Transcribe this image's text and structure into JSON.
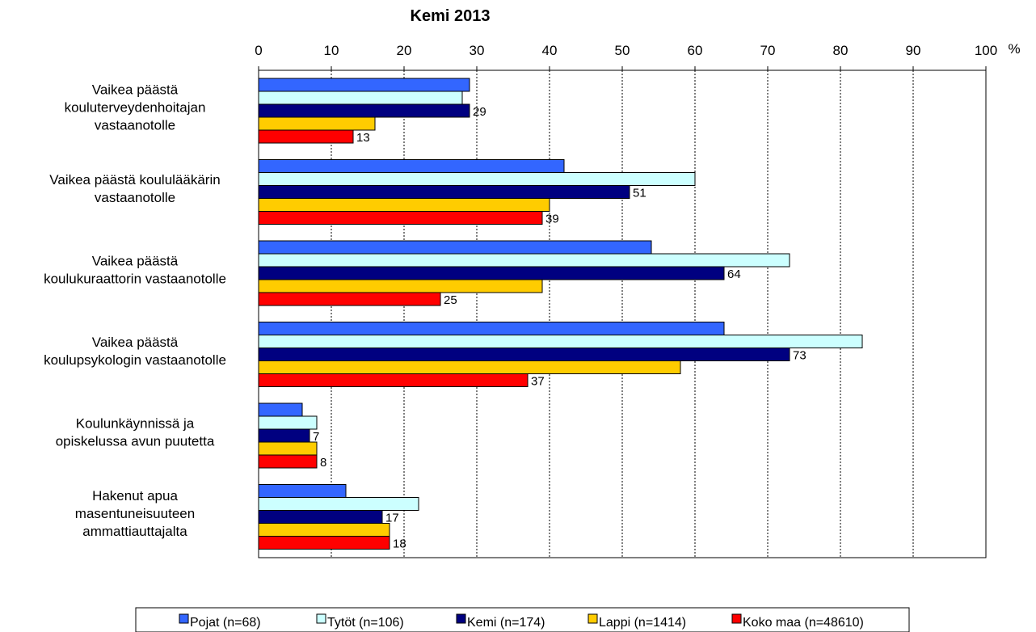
{
  "chart_data": {
    "type": "bar",
    "orientation": "horizontal",
    "title": "Kemi 2013",
    "unit": "%",
    "xlim": [
      0,
      100
    ],
    "ticks": [
      0,
      10,
      20,
      30,
      40,
      50,
      60,
      70,
      80,
      90,
      100
    ],
    "grid": true,
    "legend_position": "bottom",
    "categories": [
      [
        "Vaikea päästä",
        "kouluterveydenhoitajan",
        "vastaanotolle"
      ],
      [
        "Vaikea päästä koululääkärin",
        "vastaanotolle"
      ],
      [
        "Vaikea päästä",
        "koulukuraattorin vastaanotolle"
      ],
      [
        "Vaikea päästä",
        "koulupsykologin vastaanotolle"
      ],
      [
        "Koulunkäynnissä ja",
        "opiskelussa avun puutetta"
      ],
      [
        "Hakenut apua",
        "masentuneisuuteen",
        "ammattiauttajalta"
      ]
    ],
    "series": [
      {
        "name": "Pojat (n=68)",
        "color": "#3366FF",
        "values": [
          29,
          42,
          54,
          64,
          6,
          12
        ]
      },
      {
        "name": "Tytöt (n=106)",
        "color": "#CCFFFF",
        "values": [
          28,
          60,
          73,
          83,
          8,
          22
        ]
      },
      {
        "name": "Kemi (n=174)",
        "color": "#000080",
        "values": [
          29,
          51,
          64,
          73,
          7,
          17
        ]
      },
      {
        "name": "Lappi (n=1414)",
        "color": "#FFCC00",
        "values": [
          16,
          40,
          39,
          58,
          8,
          18
        ]
      },
      {
        "name": "Koko maa (n=48610)",
        "color": "#FF0000",
        "values": [
          13,
          39,
          25,
          37,
          8,
          18
        ]
      }
    ],
    "labelled_series": [
      2,
      4
    ]
  }
}
